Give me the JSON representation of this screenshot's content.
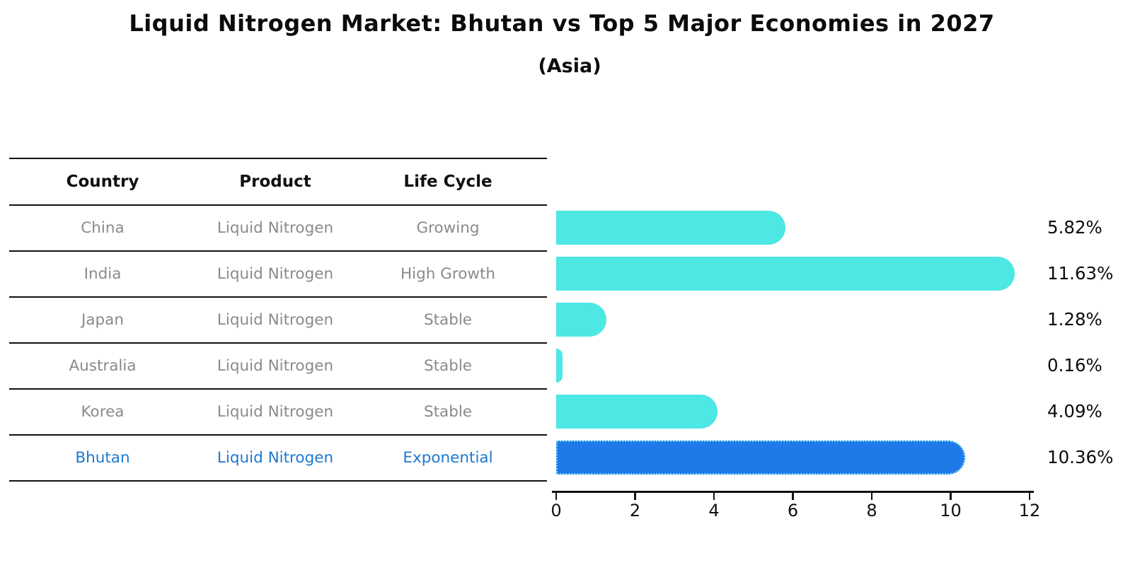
{
  "title": "Liquid Nitrogen Market: Bhutan vs Top 5 Major Economies in 2027",
  "subtitle": "(Asia)",
  "table": {
    "headers": [
      "Country",
      "Product",
      "Life Cycle"
    ],
    "rows": [
      {
        "country": "China",
        "product": "Liquid Nitrogen",
        "life_cycle": "Growing",
        "highlight": false
      },
      {
        "country": "India",
        "product": "Liquid Nitrogen",
        "life_cycle": "High Growth",
        "highlight": false
      },
      {
        "country": "Japan",
        "product": "Liquid Nitrogen",
        "life_cycle": "Stable",
        "highlight": false
      },
      {
        "country": "Australia",
        "product": "Liquid Nitrogen",
        "life_cycle": "Stable",
        "highlight": false
      },
      {
        "country": "Korea",
        "product": "Liquid Nitrogen",
        "life_cycle": "Stable",
        "highlight": false
      },
      {
        "country": "Bhutan",
        "product": "Liquid Nitrogen",
        "life_cycle": "Exponential",
        "highlight": true
      }
    ]
  },
  "chart_data": {
    "type": "bar",
    "orientation": "horizontal",
    "title": "Liquid Nitrogen Market: Bhutan vs Top 5 Major Economies in 2027",
    "subtitle": "(Asia)",
    "categories": [
      "China",
      "India",
      "Japan",
      "Australia",
      "Korea",
      "Bhutan"
    ],
    "values": [
      5.82,
      11.63,
      1.28,
      0.16,
      4.09,
      10.36
    ],
    "value_labels": [
      "5.82%",
      "11.63%",
      "1.28%",
      "0.16%",
      "4.09%",
      "10.36%"
    ],
    "xlabel": "",
    "ylabel": "",
    "xlim": [
      0,
      12
    ],
    "x_ticks": [
      0,
      2,
      4,
      6,
      8,
      10,
      12
    ],
    "grid": false,
    "legend": false,
    "highlight_index": 5,
    "bar_color": "#4de7e4",
    "highlight_bar_color": "#1e7ae8",
    "highlight_border_color": "#6fd4f4",
    "highlight_text_color": "#1c78d0",
    "row_text_color": "#8a8a8a"
  }
}
